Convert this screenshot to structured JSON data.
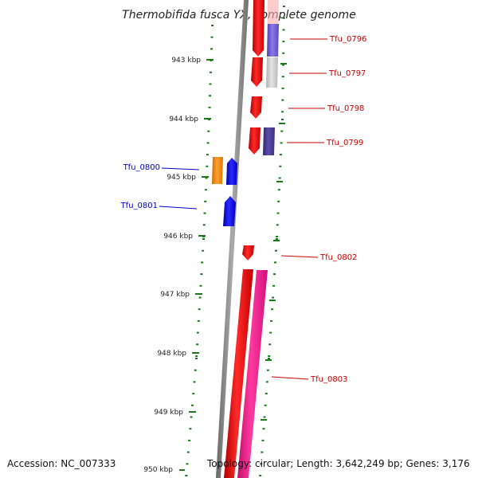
{
  "title": "Thermobifida fusca YX, complete genome",
  "footer": {
    "accession": "Accession: NC_007333",
    "topology": "Topology: circular; Length: 3,642,249 bp; Genes: 3,176"
  },
  "colors": {
    "background": "#ffffff",
    "backbone": "#888888",
    "tick": "#1a7a1a",
    "forward_label": "#cc0000",
    "reverse_label": "#0000cc",
    "red_gene": "#ee0000",
    "blue_gene": "#0000ee",
    "orange_gene": "#ff8c00",
    "slate_blue": "#6a5acd",
    "light_gray": "#c8c8c8",
    "dark_slate_blue": "#483d8b",
    "pink": "#ff1493"
  },
  "ticks": [
    "943 kbp",
    "944 kbp",
    "945 kbp",
    "946 kbp",
    "947 kbp",
    "948 kbp",
    "949 kbp",
    "950 kbp"
  ],
  "genes": [
    {
      "label": "Tfu_0796",
      "strand": "forward"
    },
    {
      "label": "Tfu_0797",
      "strand": "forward"
    },
    {
      "label": "Tfu_0798",
      "strand": "forward"
    },
    {
      "label": "Tfu_0799",
      "strand": "forward"
    },
    {
      "label": "Tfu_0800",
      "strand": "reverse"
    },
    {
      "label": "Tfu_0801",
      "strand": "reverse"
    },
    {
      "label": "Tfu_0802",
      "strand": "forward"
    },
    {
      "label": "Tfu_0803",
      "strand": "forward"
    }
  ]
}
